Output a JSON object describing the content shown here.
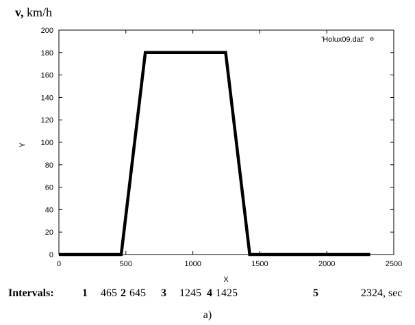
{
  "chart_data": {
    "type": "line",
    "title": "",
    "xlabel": "X",
    "ylabel": "Y",
    "xlim": [
      0,
      2500
    ],
    "ylim": [
      0,
      200
    ],
    "x_ticks": [
      "0",
      "500",
      "1000",
      "1500",
      "2000",
      "2500"
    ],
    "y_ticks": [
      "0",
      "20",
      "40",
      "60",
      "80",
      "100",
      "120",
      "140",
      "160",
      "180",
      "200"
    ],
    "grid": false,
    "legend_position": "top-right",
    "series": [
      {
        "name": "'Holux09.dat'",
        "x": [
          0,
          465,
          645,
          1245,
          1425,
          2324
        ],
        "y": [
          0,
          0,
          180,
          180,
          0,
          0
        ]
      }
    ]
  },
  "velocity_label": {
    "symbol": "v,",
    "unit": "km/h"
  },
  "intervals": {
    "label": "Intervals:",
    "items": [
      {
        "n": "1",
        "value": "465"
      },
      {
        "n": "2",
        "value": "645"
      },
      {
        "n": "3",
        "value": "1245"
      },
      {
        "n": "4",
        "value": "1425"
      },
      {
        "n": "5",
        "value": "2324, sec"
      }
    ]
  },
  "caption": "a)"
}
